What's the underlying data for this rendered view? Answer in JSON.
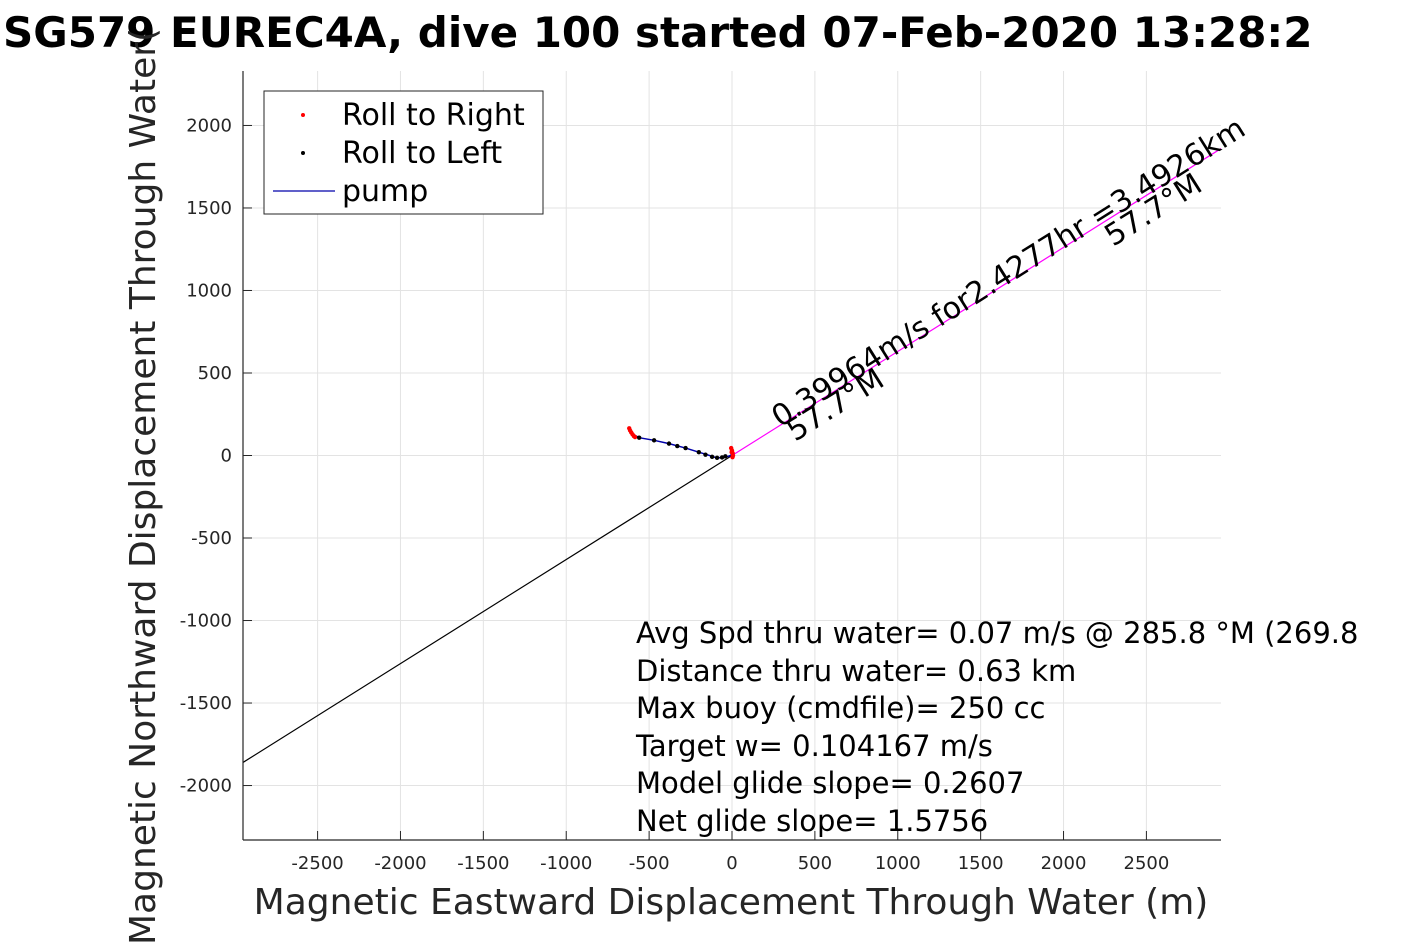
{
  "chart_data": {
    "type": "scatter",
    "title": "SG579 EUREC4A, dive 100 started 07-Feb-2020 13:28:2",
    "xlabel": "Magnetic Eastward Displacement Through Water (m)",
    "ylabel": "Magnetic Northward Displacement Through Water(",
    "xlim": [
      -2950,
      2950
    ],
    "ylim": [
      -2330,
      2330
    ],
    "xticks": [
      -2500,
      -2000,
      -1500,
      -1000,
      -500,
      0,
      500,
      1000,
      1500,
      2000,
      2500
    ],
    "yticks": [
      -2000,
      -1500,
      -1000,
      -500,
      0,
      500,
      1000,
      1500,
      2000
    ],
    "grid": true,
    "legend": {
      "location": "top-left",
      "entries": [
        {
          "label": "Roll to Right",
          "color": "#ff0000",
          "marker": "dot"
        },
        {
          "label": "Roll to Left",
          "color": "#000000",
          "marker": "dot"
        },
        {
          "label": "pump",
          "color": "#0000aa",
          "marker": "line"
        }
      ]
    },
    "series": [
      {
        "name": "Roll to Right",
        "color": "#ff0000",
        "x": [
          -620,
          -615,
          -608,
          -600,
          -592,
          -585,
          -5,
          0,
          4,
          6,
          3,
          -2
        ],
        "y": [
          165,
          152,
          140,
          128,
          118,
          112,
          45,
          30,
          15,
          0,
          -10,
          20
        ]
      },
      {
        "name": "Roll to Left",
        "color": "#000000",
        "x": [
          -560,
          -470,
          -380,
          -330,
          -280,
          -200,
          -160,
          -120,
          -90,
          -60,
          -40
        ],
        "y": [
          108,
          92,
          72,
          57,
          45,
          20,
          5,
          -8,
          -14,
          -12,
          -5
        ]
      },
      {
        "name": "pump",
        "color": "#0000aa",
        "x": [
          -625,
          -610,
          -590,
          -560,
          -470,
          -380,
          -280,
          -200,
          -150,
          -100,
          -60,
          -30,
          -10,
          0,
          5,
          0,
          -5
        ],
        "y": [
          170,
          150,
          125,
          108,
          92,
          72,
          45,
          20,
          5,
          -12,
          -14,
          -8,
          0,
          10,
          30,
          45,
          30
        ]
      }
    ],
    "lines": [
      {
        "color": "#000000",
        "x": [
          -2950,
          0
        ],
        "y": [
          -1860,
          0
        ]
      },
      {
        "color": "#ff00ff",
        "x": [
          0,
          2950
        ],
        "y": [
          0,
          1860
        ]
      }
    ],
    "annotations": {
      "vector_label": "0.39964m/s for2.4277hr =3.4926km",
      "heading_near": "57.7°M",
      "heading_far": "57.7°M"
    },
    "stats": [
      "Avg Spd thru water=  0.07 m/s @ 285.8 °M (269.8",
      "Distance thru water=  0.63 km",
      "Max buoy (cmdfile)= 250 cc",
      "Target w= 0.104167 m/s",
      "Model glide slope= 0.2607",
      "Net glide slope= 1.5756"
    ]
  }
}
